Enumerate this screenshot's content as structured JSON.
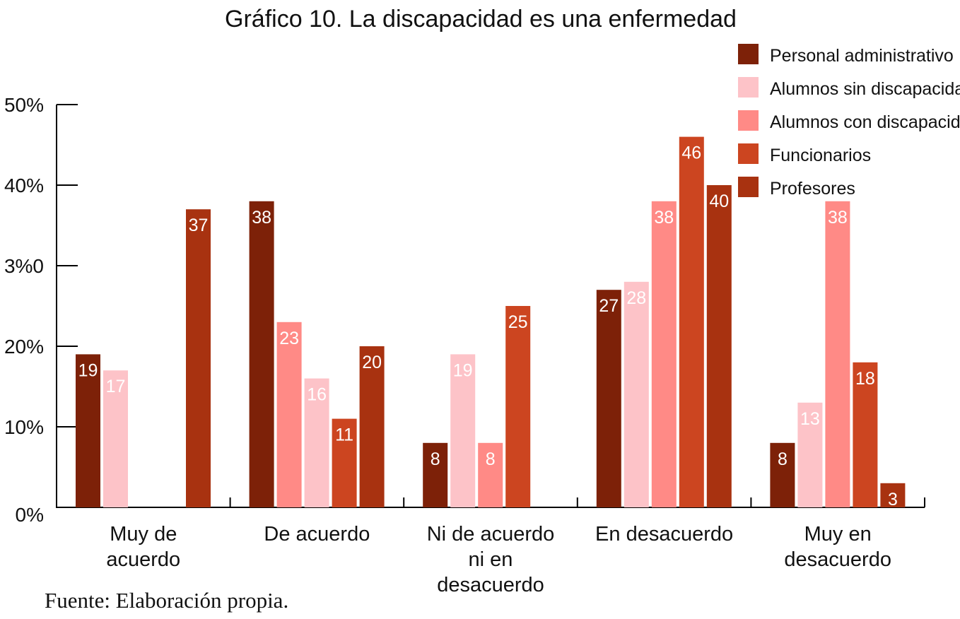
{
  "chart_data": {
    "type": "bar",
    "title": "Gráfico 10. La discapacidad es una enfermedad",
    "source": "Fuente: Elaboración propia.",
    "xlabel": "",
    "ylabel": "",
    "ylim": [
      0,
      50
    ],
    "y_ticks": [
      "0%",
      "10%",
      "20%",
      "3%0",
      "40%",
      "50%"
    ],
    "grid": false,
    "legend_position": "top-right",
    "series": [
      {
        "name": "Personal administrativo",
        "color": "#7d2108"
      },
      {
        "name": "Alumnos sin discapacidad",
        "color": "#fdc3c8"
      },
      {
        "name": "Alumnos con discapacidad",
        "color": "#ff8a86"
      },
      {
        "name": "Funcionarios",
        "color": "#cc4520"
      },
      {
        "name": "Profesores",
        "color": "#a83210"
      }
    ],
    "categories": [
      {
        "lines": [
          "Muy de",
          "acuerdo"
        ],
        "bars": [
          {
            "series": 0,
            "value": 19
          },
          {
            "series": 1,
            "value": 17
          },
          null,
          null,
          {
            "series": 4,
            "value": 37
          }
        ]
      },
      {
        "lines": [
          "De acuerdo"
        ],
        "bars": [
          {
            "series": 0,
            "value": 38
          },
          {
            "series": 2,
            "value": 23
          },
          {
            "series": 1,
            "value": 16
          },
          {
            "series": 3,
            "value": 11
          },
          {
            "series": 4,
            "value": 20
          }
        ]
      },
      {
        "lines": [
          "Ni de acuerdo",
          "ni en",
          "desacuerdo"
        ],
        "bars": [
          {
            "series": 0,
            "value": 8
          },
          {
            "series": 1,
            "value": 19
          },
          {
            "series": 2,
            "value": 8
          },
          {
            "series": 3,
            "value": 25
          },
          null
        ]
      },
      {
        "lines": [
          "En desacuerdo"
        ],
        "bars": [
          {
            "series": 0,
            "value": 27
          },
          {
            "series": 1,
            "value": 28
          },
          {
            "series": 2,
            "value": 38
          },
          {
            "series": 3,
            "value": 46
          },
          {
            "series": 4,
            "value": 40
          }
        ]
      },
      {
        "lines": [
          "Muy en",
          "desacuerdo"
        ],
        "bars": [
          {
            "series": 0,
            "value": 8
          },
          {
            "series": 1,
            "value": 13
          },
          {
            "series": 2,
            "value": 38
          },
          {
            "series": 3,
            "value": 18
          },
          {
            "series": 4,
            "value": 3
          }
        ]
      }
    ]
  }
}
